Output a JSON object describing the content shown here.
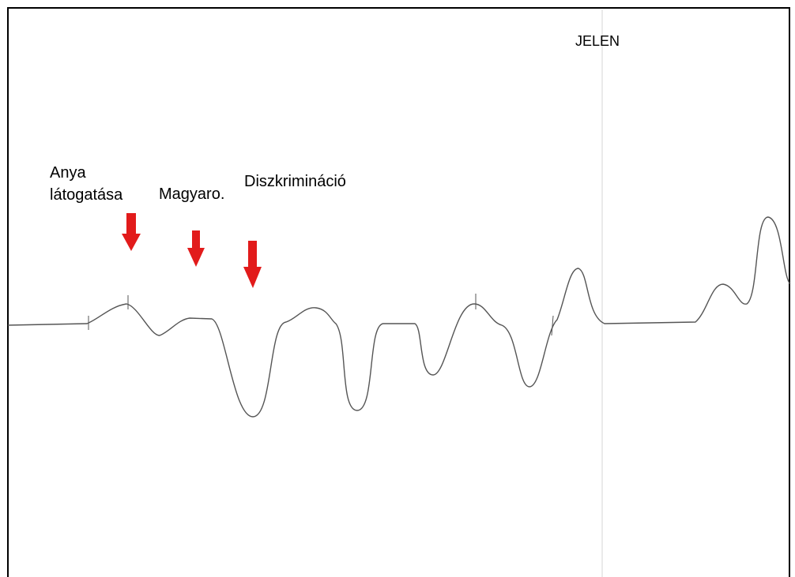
{
  "annotations": [
    {
      "lines": [
        "Anya",
        "látogatása"
      ]
    },
    {
      "text": "Magyaro."
    },
    {
      "text": "Diszkrimináció"
    }
  ],
  "present_label": "JELEN"
}
